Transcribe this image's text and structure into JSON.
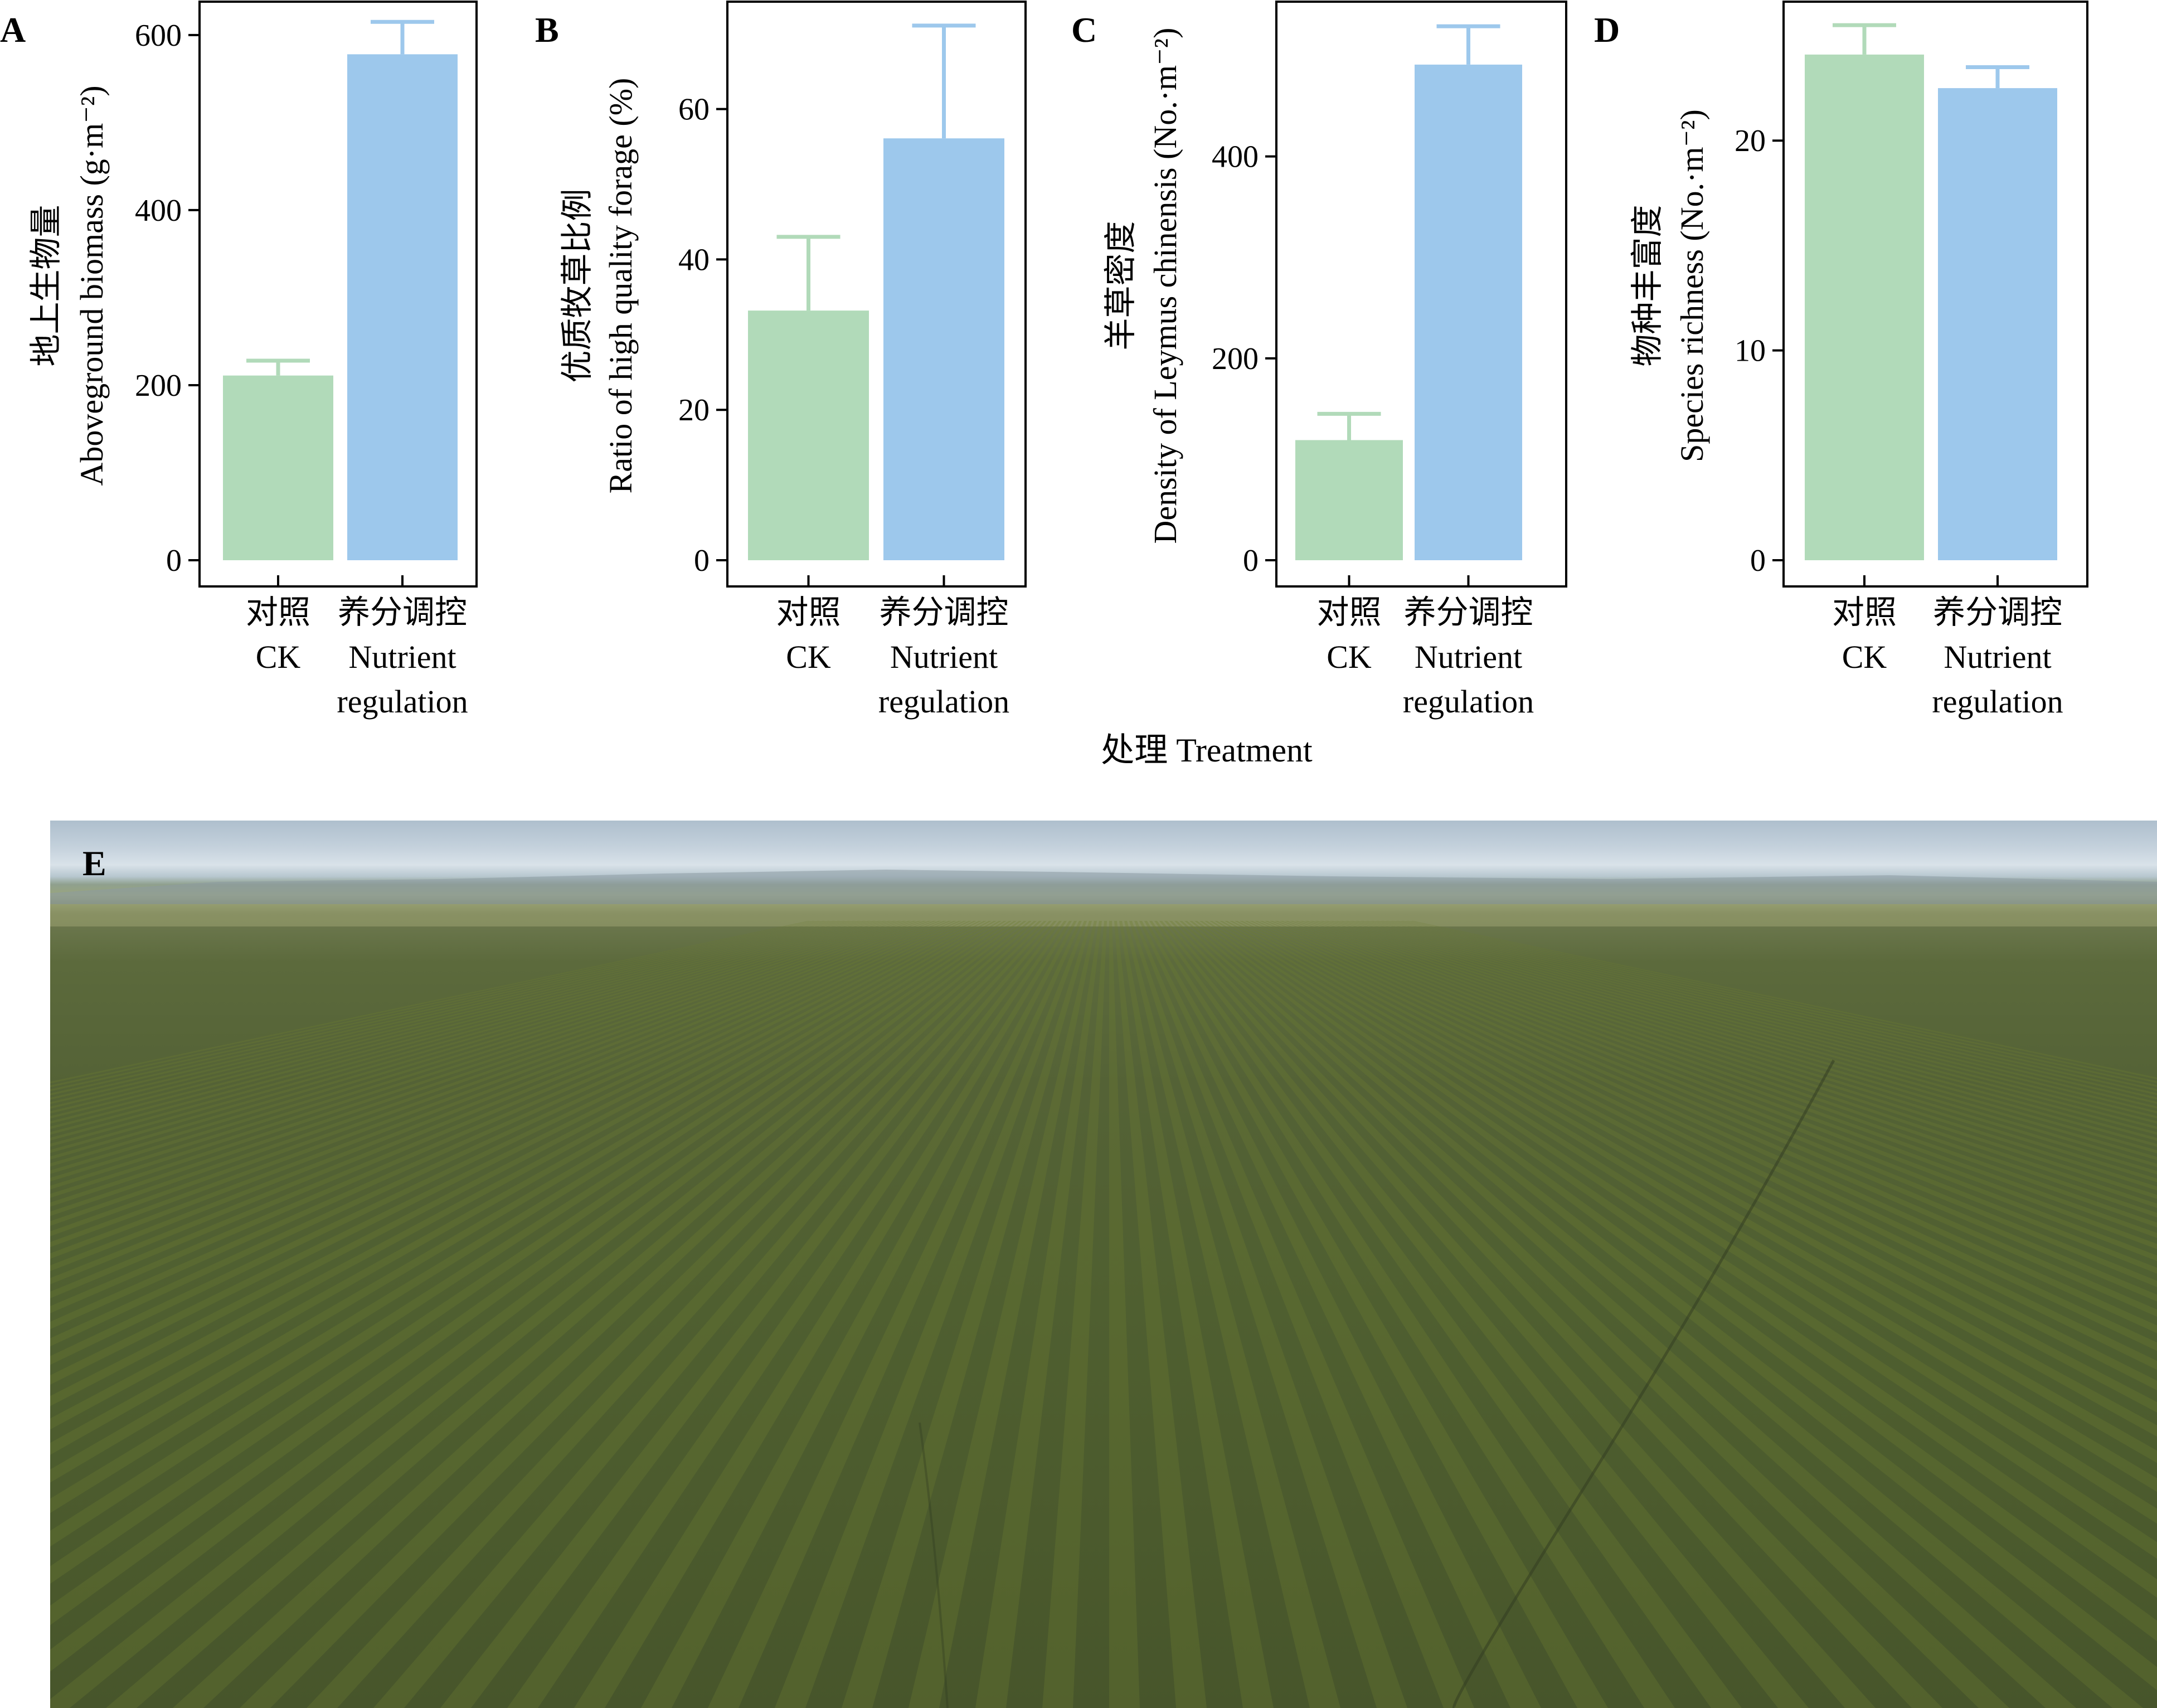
{
  "chart_data": [
    {
      "panel": "A",
      "type": "bar",
      "categories": [
        "对照\nCK",
        "养分调控\nNutrient\nregulation"
      ],
      "values": [
        211,
        578
      ],
      "error": [
        17,
        37
      ],
      "ylabel": "地上生物量\nAboveground biomass (g·m⁻²)",
      "ylim": [
        0,
        640
      ],
      "yticks": [
        0,
        200,
        400,
        600
      ],
      "colors": [
        "#b1dab9",
        "#9dc8ec"
      ]
    },
    {
      "panel": "B",
      "type": "bar",
      "categories": [
        "对照\nCK",
        "养分调控\nNutrient\nregulation"
      ],
      "values": [
        33.2,
        56.1
      ],
      "error": [
        9.8,
        15
      ],
      "ylabel": "优质牧草比例\nRatio of high quality forage (%)",
      "ylim": [
        0,
        74.5
      ],
      "yticks": [
        0,
        20,
        40,
        60
      ],
      "colors": [
        "#b1dab9",
        "#9dc8ec"
      ]
    },
    {
      "panel": "C",
      "type": "bar",
      "categories": [
        "对照\nCK",
        "养分调控\nNutrient\nregulation"
      ],
      "values": [
        119,
        491
      ],
      "error": [
        26,
        38
      ],
      "ylabel": "羊草密度\nDensity of Leymus chinensis (No.·m⁻²)",
      "ylim": [
        0,
        555
      ],
      "yticks": [
        0,
        200,
        400
      ],
      "colors": [
        "#b1dab9",
        "#9dc8ec"
      ]
    },
    {
      "panel": "D",
      "type": "bar",
      "categories": [
        "对照\nCK",
        "养分调控\nNutrient\nregulation"
      ],
      "values": [
        24.1,
        22.5
      ],
      "error": [
        1.4,
        1.0
      ],
      "ylabel": "物种丰富度\nSpecies richness (No.·m⁻²)",
      "ylim": [
        0,
        26.7
      ],
      "yticks": [
        0,
        10,
        20
      ],
      "colors": [
        "#b1dab9",
        "#9dc8ec"
      ]
    }
  ],
  "shared_xlabel": "处理 Treatment",
  "photo": {
    "panel": "E"
  }
}
